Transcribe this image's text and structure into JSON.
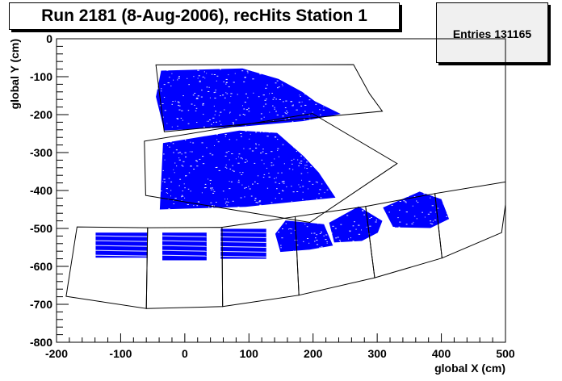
{
  "chart_data": {
    "type": "scatter",
    "title": "Run 2181 (8-Aug-2006), recHits Station 1",
    "xlabel": "global X (cm)",
    "ylabel": "global Y (cm)",
    "xlim": [
      -200,
      500
    ],
    "ylim": [
      -800,
      0
    ],
    "x_ticks": [
      -200,
      -100,
      0,
      100,
      200,
      300,
      400,
      500
    ],
    "y_ticks": [
      0,
      -100,
      -200,
      -300,
      -400,
      -500,
      -600,
      -700,
      -800
    ],
    "stats": {
      "label": "Entries",
      "value": "131165"
    },
    "marker_color": "#0000ff",
    "grid": false,
    "chambers": [
      {
        "name": "inner",
        "outline": [
          [
            -32,
            -245
          ],
          [
            308,
            -191
          ],
          [
            288,
            -145
          ],
          [
            263,
            -68
          ],
          [
            -45,
            -69
          ]
        ]
      },
      {
        "name": "middle",
        "outline": [
          [
            -61,
            -413
          ],
          [
            195,
            -484
          ],
          [
            331,
            -329
          ],
          [
            199,
            -197
          ],
          [
            -63,
            -270
          ]
        ]
      },
      {
        "name": "outer-1",
        "outline": [
          [
            -185,
            -679
          ],
          [
            -60,
            -711
          ],
          [
            -58,
            -498
          ],
          [
            -168,
            -496
          ]
        ]
      },
      {
        "name": "outer-2",
        "outline": [
          [
            -60,
            -711
          ],
          [
            59,
            -706
          ],
          [
            58,
            -497
          ],
          [
            -58,
            -498
          ]
        ]
      },
      {
        "name": "outer-3",
        "outline": [
          [
            59,
            -706
          ],
          [
            178,
            -676
          ],
          [
            172,
            -469
          ],
          [
            58,
            -497
          ]
        ]
      },
      {
        "name": "outer-4",
        "outline": [
          [
            178,
            -676
          ],
          [
            296,
            -630
          ],
          [
            282,
            -442
          ],
          [
            172,
            -469
          ]
        ]
      },
      {
        "name": "outer-5",
        "outline": [
          [
            296,
            -630
          ],
          [
            401,
            -578
          ],
          [
            390,
            -408
          ],
          [
            282,
            -442
          ]
        ]
      },
      {
        "name": "outer-6",
        "outline": [
          [
            401,
            -578
          ],
          [
            494,
            -511
          ],
          [
            505,
            -376
          ],
          [
            390,
            -408
          ]
        ]
      }
    ],
    "hit_regions": [
      {
        "name": "inner",
        "shape": "poly",
        "points": [
          [
            -32,
            -242
          ],
          [
            87,
            -232
          ],
          [
            185,
            -217
          ],
          [
            243,
            -198
          ],
          [
            203,
            -165
          ],
          [
            183,
            -140
          ],
          [
            146,
            -106
          ],
          [
            90,
            -78
          ],
          [
            -37,
            -84
          ],
          [
            -45,
            -153
          ]
        ]
      },
      {
        "name": "middle",
        "shape": "poly",
        "points": [
          [
            -39,
            -450
          ],
          [
            95,
            -443
          ],
          [
            235,
            -419
          ],
          [
            209,
            -353
          ],
          [
            185,
            -309
          ],
          [
            144,
            -248
          ],
          [
            85,
            -242
          ],
          [
            -34,
            -275
          ]
        ]
      },
      {
        "name": "outer-1",
        "shape": "rect",
        "x": [
          -139,
          -58
        ],
        "y": [
          -577,
          -511
        ]
      },
      {
        "name": "outer-2",
        "shape": "rect",
        "x": [
          -35,
          34
        ],
        "y": [
          -584,
          -511
        ]
      },
      {
        "name": "outer-3",
        "shape": "rect",
        "x": [
          56,
          127
        ],
        "y": [
          -580,
          -501
        ]
      },
      {
        "name": "outer-4",
        "shape": "poly",
        "points": [
          [
            141,
            -514
          ],
          [
            149,
            -562
          ],
          [
            195,
            -556
          ],
          [
            231,
            -545
          ],
          [
            217,
            -489
          ],
          [
            157,
            -479
          ]
        ]
      },
      {
        "name": "outer-5",
        "shape": "poly",
        "points": [
          [
            225,
            -485
          ],
          [
            233,
            -537
          ],
          [
            276,
            -533
          ],
          [
            301,
            -511
          ],
          [
            308,
            -480
          ],
          [
            271,
            -442
          ]
        ]
      },
      {
        "name": "outer-6",
        "shape": "poly",
        "points": [
          [
            309,
            -445
          ],
          [
            325,
            -497
          ],
          [
            383,
            -499
          ],
          [
            412,
            -475
          ],
          [
            400,
            -423
          ],
          [
            366,
            -403
          ]
        ]
      }
    ]
  }
}
